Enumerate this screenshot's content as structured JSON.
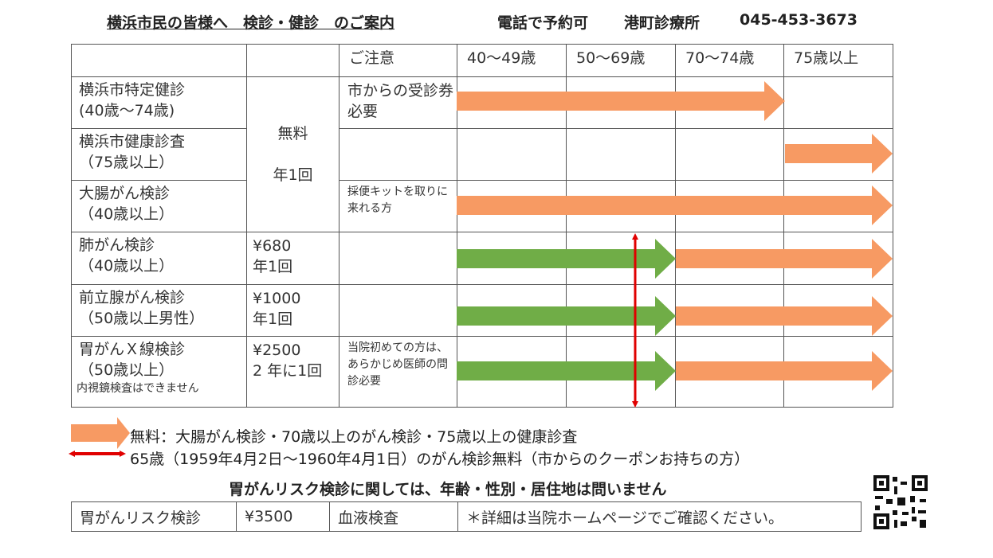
{
  "header": {
    "title": "横浜市民の皆様へ　検診・健診　のご案内",
    "reservation": "電話で予約可",
    "clinic": "港町診療所",
    "phone": "045-453-3673"
  },
  "table": {
    "note_header": "ご注意",
    "age_headers": [
      "40〜49歳",
      "50〜69歳",
      "70〜74歳",
      "75歳以上"
    ],
    "shared_fee": {
      "line1": "無料",
      "line2": "年1回"
    },
    "rows": [
      {
        "name": "横浜市特定健診",
        "sub": "(40歳〜74歳)",
        "note": "市からの受診券必要"
      },
      {
        "name": "横浜市健康診査",
        "sub": "（75歳以上）",
        "note": ""
      },
      {
        "name": "大腸がん検診",
        "sub": "（40歳以上）",
        "note": "採便キットを取りに来れる方"
      },
      {
        "name": "肺がん検診",
        "sub": "（40歳以上）",
        "fee": "¥680",
        "freq": "年1回",
        "note": ""
      },
      {
        "name": "前立腺がん検診",
        "sub": "（50歳以上男性）",
        "fee": "¥1000",
        "freq": "年1回",
        "note": ""
      },
      {
        "name": "胃がんＸ線検診",
        "sub": "（50歳以上）",
        "extra": "内視鏡検査はできません",
        "fee": "¥2500",
        "freq": " 2 年に1回",
        "note": "当院初めての方は、あらかじめ医師の問診必要"
      }
    ]
  },
  "colors": {
    "free_arrow": "#f79a63",
    "paid_arrow": "#70ad47",
    "age65_marker": "#e00000"
  },
  "legend": {
    "orange": "無料：大腸がん検診・70歳以上のがん検診・75歳以上の健康診査",
    "red": "65歳（1959年4月2日〜1960年4月1日）のがん検診無料（市からのクーポンお持ちの方）"
  },
  "risk": {
    "title": "胃がんリスク検診に関しては、年齢・性別・居住地は問いません",
    "name": "胃がんリスク検診",
    "fee": "¥3500",
    "method": "血液検査",
    "note": "＊詳細は当院ホームページでご確認ください。"
  }
}
